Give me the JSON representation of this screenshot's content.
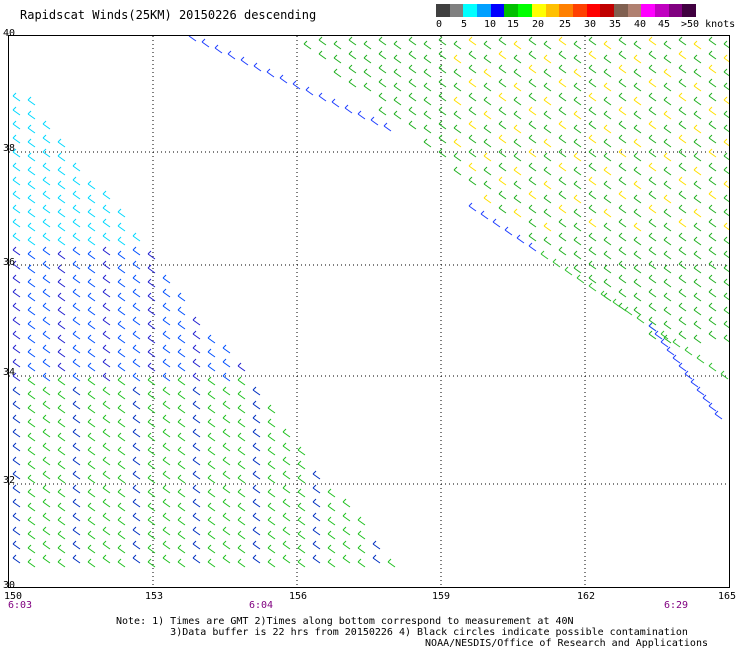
{
  "title": "Rapidscat Winds(25KM) 20150226 descending",
  "legend": {
    "colors": [
      "#404040",
      "#808080",
      "#00ffff",
      "#00a0ff",
      "#0000ff",
      "#00c000",
      "#00ff00",
      "#ffff00",
      "#ffc000",
      "#ff8000",
      "#ff4000",
      "#ff0000",
      "#c00000",
      "#806050",
      "#b08070",
      "#ff00ff",
      "#c000c0",
      "#800080",
      "#400040"
    ],
    "labels": [
      "0",
      "5",
      "10",
      "15",
      "20",
      "25",
      "30",
      "35",
      "40",
      "45",
      ">50 knots"
    ]
  },
  "lat_labels": [
    "40",
    "38",
    "36",
    "34",
    "32",
    "30"
  ],
  "lon_labels": [
    "150",
    "153",
    "156",
    "159",
    "162",
    "165"
  ],
  "time_labels": [
    "6:03",
    "6:04",
    "6:29"
  ],
  "notes": [
    "Note: 1) Times are GMT 2)Times along bottom correspond to measurement at 40N",
    "         3)Data buffer is 22 hrs from 20150226 4) Black circles indicate possible contamination"
  ],
  "footer": "NOAA/NESDIS/Office of Research and Applications"
}
